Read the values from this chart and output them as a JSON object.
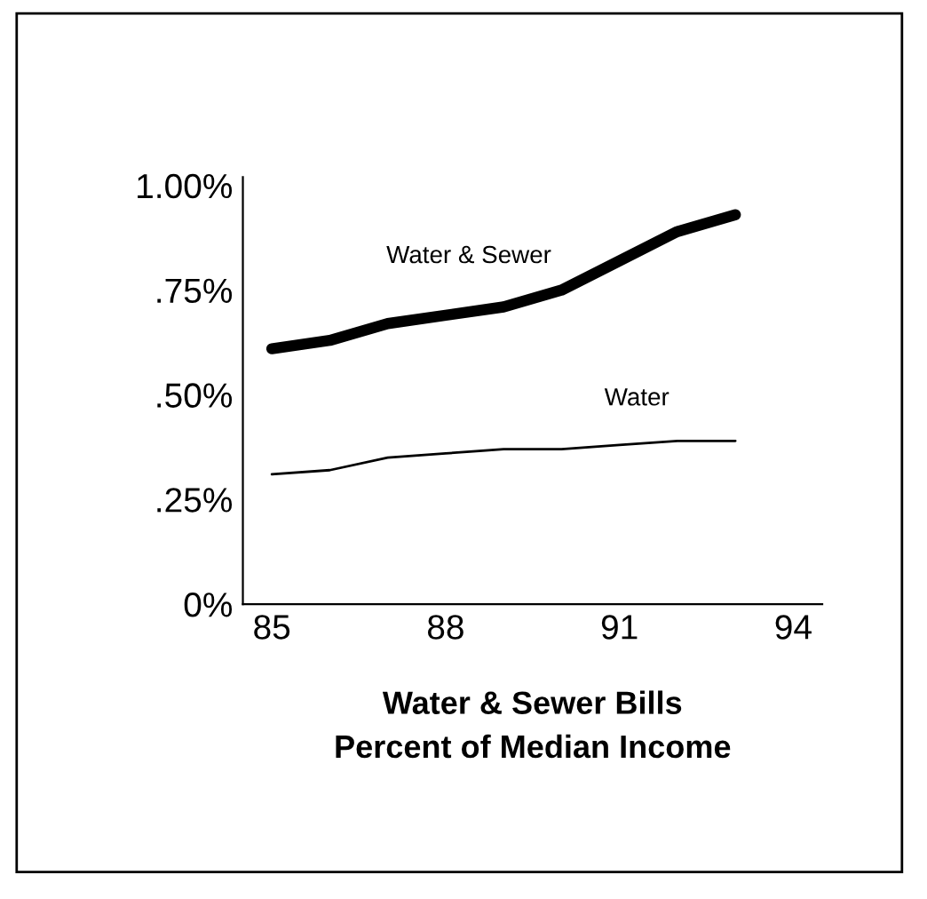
{
  "chart_data": {
    "type": "line",
    "xlabel": "Water & Sewer Bills\nPercent of Median Income",
    "x": [
      85,
      86,
      87,
      88,
      89,
      90,
      91,
      92,
      93
    ],
    "series": [
      {
        "name": "Water & Sewer",
        "color": "#000000",
        "values": [
          0.61,
          0.63,
          0.67,
          0.69,
          0.71,
          0.75,
          0.82,
          0.89,
          0.93
        ]
      },
      {
        "name": "Water",
        "color": "#000000",
        "values": [
          0.31,
          0.32,
          0.35,
          0.36,
          0.37,
          0.37,
          0.38,
          0.39,
          0.39
        ]
      }
    ],
    "xlim": [
      84.5,
      94.5
    ],
    "ylim": [
      0,
      1.02
    ],
    "xticks": [
      85,
      88,
      91,
      94
    ],
    "yticks": [
      {
        "value": 0,
        "label": "0%"
      },
      {
        "value": 0.25,
        "label": ".25%"
      },
      {
        "value": 0.5,
        "label": ".50%"
      },
      {
        "value": 0.75,
        "label": ".75%"
      },
      {
        "value": 1.0,
        "label": "1.00%"
      }
    ],
    "grid": false,
    "legend": false,
    "marker": "none",
    "line_style": "solid"
  }
}
